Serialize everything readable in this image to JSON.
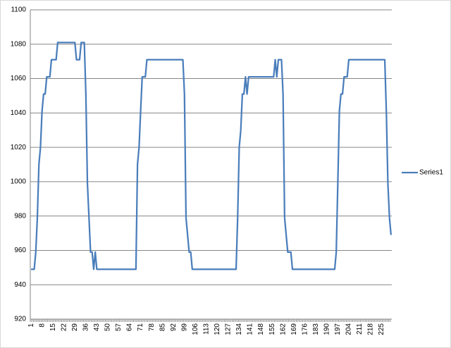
{
  "chart_data": {
    "type": "line",
    "categories": [
      1,
      null,
      null,
      null,
      null,
      null,
      null,
      8,
      null,
      null,
      null,
      null,
      null,
      null,
      15,
      null,
      null,
      null,
      null,
      null,
      null,
      22,
      null,
      null,
      null,
      null,
      null,
      null,
      29,
      null,
      null,
      null,
      null,
      null,
      null,
      36,
      null,
      null,
      null,
      null,
      null,
      null,
      43,
      null,
      null,
      null,
      null,
      null,
      null,
      50,
      null,
      null,
      null,
      null,
      null,
      null,
      57,
      null,
      null,
      null,
      null,
      null,
      null,
      64,
      null,
      null,
      null,
      null,
      null,
      null,
      71,
      null,
      null,
      null,
      null,
      null,
      null,
      78,
      null,
      null,
      null,
      null,
      null,
      null,
      85,
      null,
      null,
      null,
      null,
      null,
      null,
      92,
      null,
      null,
      null,
      null,
      null,
      null,
      99,
      null,
      null,
      null,
      null,
      null,
      null,
      106,
      null,
      null,
      null,
      null,
      null,
      null,
      113,
      null,
      null,
      null,
      null,
      null,
      null,
      120,
      null,
      null,
      null,
      null,
      null,
      null,
      127,
      null,
      null,
      null,
      null,
      null,
      null,
      134,
      null,
      null,
      null,
      null,
      null,
      null,
      141,
      null,
      null,
      null,
      null,
      null,
      null,
      148,
      null,
      null,
      null,
      null,
      null,
      null,
      155,
      null,
      null,
      null,
      null,
      null,
      null,
      162,
      null,
      null,
      null,
      null,
      null,
      null,
      169,
      null,
      null,
      null,
      null,
      null,
      null,
      176,
      null,
      null,
      null,
      null,
      null,
      null,
      183,
      null,
      null,
      null,
      null,
      null,
      null,
      190,
      null,
      null,
      null,
      null,
      null,
      null,
      197,
      null,
      null,
      null,
      null,
      null,
      null,
      204,
      null,
      null,
      null,
      null,
      null,
      null,
      211,
      null,
      null,
      null,
      null,
      null,
      null,
      218,
      null,
      null,
      null,
      null,
      null,
      null,
      225,
      null,
      null,
      null,
      null,
      null,
      null
    ],
    "series": [
      {
        "name": "Series1",
        "color": "#4a7ebb",
        "values": [
          949,
          949,
          949,
          959,
          979,
          1010,
          1020,
          1041,
          1051,
          1051,
          1061,
          1061,
          1061,
          1071,
          1071,
          1071,
          1071,
          1081,
          1081,
          1081,
          1081,
          1081,
          1081,
          1081,
          1081,
          1081,
          1081,
          1081,
          1081,
          1071,
          1071,
          1071,
          1081,
          1081,
          1081,
          1051,
          999,
          979,
          959,
          959,
          949,
          959,
          949,
          949,
          949,
          949,
          949,
          949,
          949,
          949,
          949,
          949,
          949,
          949,
          949,
          949,
          949,
          949,
          949,
          949,
          949,
          949,
          949,
          949,
          949,
          949,
          949,
          949,
          1010,
          1020,
          1041,
          1061,
          1061,
          1061,
          1071,
          1071,
          1071,
          1071,
          1071,
          1071,
          1071,
          1071,
          1071,
          1071,
          1071,
          1071,
          1071,
          1071,
          1071,
          1071,
          1071,
          1071,
          1071,
          1071,
          1071,
          1071,
          1071,
          1071,
          1051,
          979,
          969,
          959,
          959,
          949,
          949,
          949,
          949,
          949,
          949,
          949,
          949,
          949,
          949,
          949,
          949,
          949,
          949,
          949,
          949,
          949,
          949,
          949,
          949,
          949,
          949,
          949,
          949,
          949,
          949,
          949,
          949,
          949,
          979,
          1020,
          1030,
          1051,
          1051,
          1061,
          1051,
          1061,
          1061,
          1061,
          1061,
          1061,
          1061,
          1061,
          1061,
          1061,
          1061,
          1061,
          1061,
          1061,
          1061,
          1061,
          1061,
          1061,
          1071,
          1061,
          1071,
          1071,
          1071,
          1051,
          979,
          969,
          959,
          959,
          959,
          949,
          949,
          949,
          949,
          949,
          949,
          949,
          949,
          949,
          949,
          949,
          949,
          949,
          949,
          949,
          949,
          949,
          949,
          949,
          949,
          949,
          949,
          949,
          949,
          949,
          949,
          949,
          949,
          959,
          999,
          1041,
          1051,
          1051,
          1061,
          1061,
          1061,
          1071,
          1071,
          1071,
          1071,
          1071,
          1071,
          1071,
          1071,
          1071,
          1071,
          1071,
          1071,
          1071,
          1071,
          1071,
          1071,
          1071,
          1071,
          1071,
          1071,
          1071,
          1071,
          1071,
          1071,
          1041,
          999,
          979,
          969
        ]
      }
    ],
    "ylim": [
      920,
      1100
    ],
    "yticks": [
      920,
      940,
      960,
      980,
      1000,
      1020,
      1040,
      1060,
      1080,
      1100
    ],
    "grid": true,
    "legend": "right"
  }
}
